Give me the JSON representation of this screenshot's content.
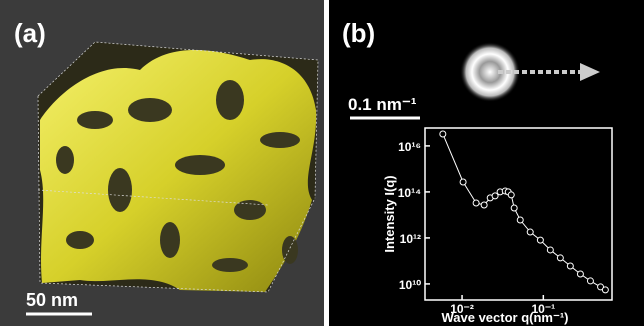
{
  "panels": [
    {
      "label": "(a)",
      "scale_bar": "50 nm"
    },
    {
      "label": "(b)",
      "scale_bar": "0.1 nm⁻¹"
    }
  ],
  "chart_data": {
    "type": "line",
    "x_label": "Wave vector q(nm⁻¹)",
    "y_label": "Intensity I(q)",
    "xscale": "log",
    "yscale": "log",
    "x": [
      0.0058,
      0.0103,
      0.0149,
      0.0187,
      0.0222,
      0.0255,
      0.0294,
      0.034,
      0.037,
      0.0403,
      0.0438,
      0.052,
      0.069,
      0.092,
      0.122,
      0.162,
      0.215,
      0.286,
      0.38,
      0.506,
      0.58
    ],
    "values": [
      3.3e+16,
      270000000000000.0,
      33000000000000.0,
      27000000000000.0,
      55000000000000.0,
      67000000000000.0,
      100000000000000.0,
      110000000000000.0,
      100000000000000.0,
      74000000000000.0,
      20000000000000.0,
      6000000000000.0,
      1800000000000.0,
      800000000000.0,
      300000000000.0,
      135000000000.0,
      60000000000.0,
      27000000000.0,
      13500000000.0,
      7400000000.0,
      5500000000.0
    ],
    "color": "#ffffff",
    "xlim": [
      0.0035,
      0.7
    ],
    "ylim": [
      2000000000.0,
      6e+16
    ],
    "xticks": [
      {
        "value": 0.01,
        "label": "10⁻²"
      },
      {
        "value": 0.1,
        "label": "10⁻¹"
      }
    ],
    "yticks": [
      {
        "value": 10000000000.0,
        "label": "10¹⁰"
      },
      {
        "value": 1000000000000.0,
        "label": "10¹²"
      },
      {
        "value": 100000000000000.0,
        "label": "10¹⁴"
      },
      {
        "value": 1e+16,
        "label": "10¹⁶"
      }
    ]
  }
}
